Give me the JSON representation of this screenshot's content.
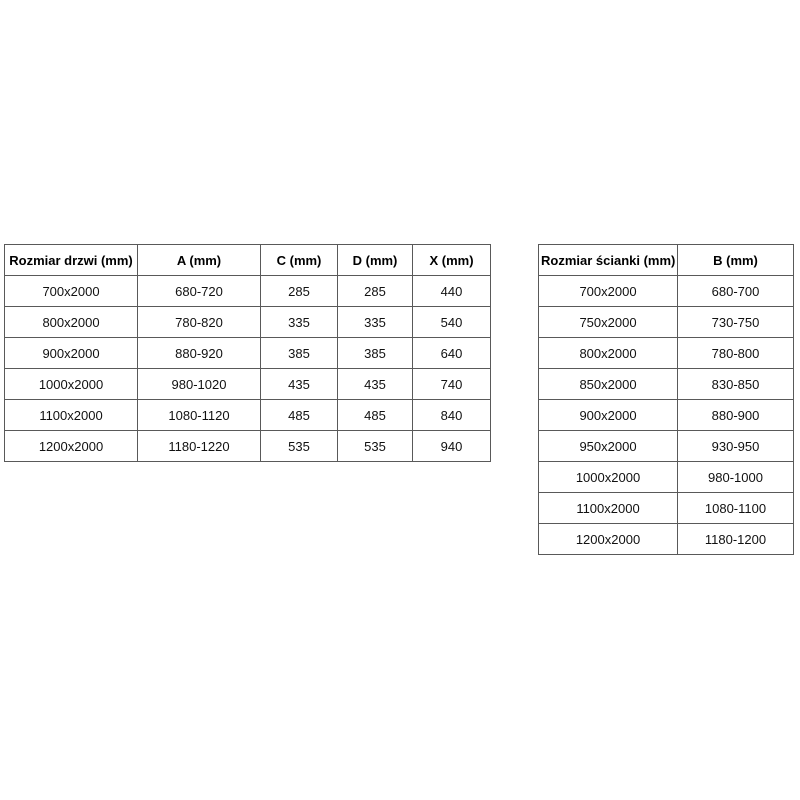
{
  "page": {
    "background_color": "#ffffff",
    "border_color": "#595959",
    "text_color": "#111111"
  },
  "tables": [
    {
      "name": "door-sizes",
      "headers": [
        "Rozmiar drzwi (mm)",
        "A (mm)",
        "C (mm)",
        "D (mm)",
        "X (mm)"
      ],
      "rows": [
        [
          "700x2000",
          "680-720",
          "285",
          "285",
          "440"
        ],
        [
          "800x2000",
          "780-820",
          "335",
          "335",
          "540"
        ],
        [
          "900x2000",
          "880-920",
          "385",
          "385",
          "640"
        ],
        [
          "1000x2000",
          "980-1020",
          "435",
          "435",
          "740"
        ],
        [
          "1100x2000",
          "1080-1120",
          "485",
          "485",
          "840"
        ],
        [
          "1200x2000",
          "1180-1220",
          "535",
          "535",
          "940"
        ]
      ]
    },
    {
      "name": "wall-sizes",
      "headers": [
        "Rozmiar ścianki (mm)",
        "B (mm)"
      ],
      "rows": [
        [
          "700x2000",
          "680-700"
        ],
        [
          "750x2000",
          "730-750"
        ],
        [
          "800x2000",
          "780-800"
        ],
        [
          "850x2000",
          "830-850"
        ],
        [
          "900x2000",
          "880-900"
        ],
        [
          "950x2000",
          "930-950"
        ],
        [
          "1000x2000",
          "980-1000"
        ],
        [
          "1100x2000",
          "1080-1100"
        ],
        [
          "1200x2000",
          "1180-1200"
        ]
      ]
    }
  ]
}
